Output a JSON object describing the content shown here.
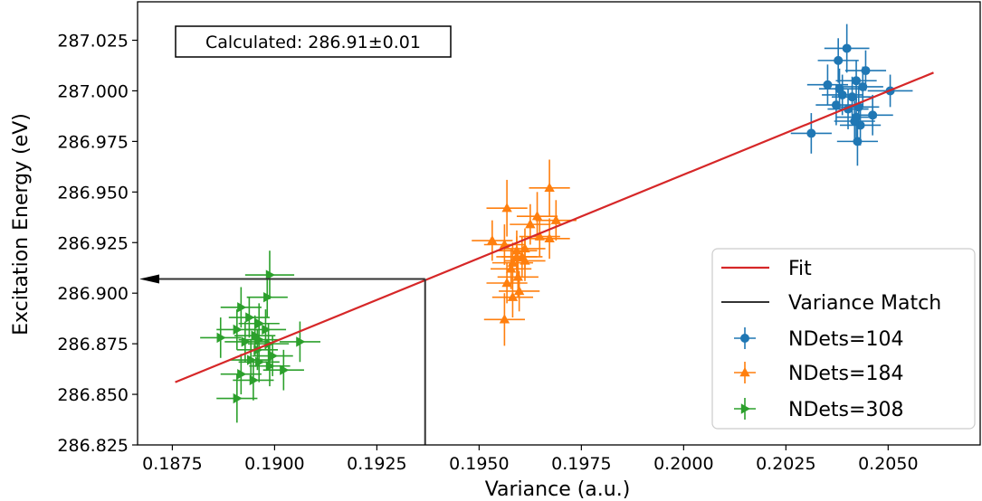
{
  "chart_data": {
    "type": "scatter",
    "xlabel": "Variance (a.u.)",
    "ylabel": "Excitation Energy (eV)",
    "xlim": [
      0.18665,
      0.20725
    ],
    "ylim": [
      286.825,
      287.044
    ],
    "x_ticks": [
      "0.1875",
      "0.1900",
      "0.1925",
      "0.1950",
      "0.1975",
      "0.2000",
      "0.2025",
      "0.2050"
    ],
    "y_ticks": [
      "286.825",
      "286.850",
      "286.875",
      "286.900",
      "286.925",
      "286.950",
      "286.975",
      "287.000",
      "287.025"
    ],
    "annotation": "Calculated: 286.91±0.01",
    "legend_position": "lower-right",
    "fit": {
      "name": "Fit",
      "color": "#d62728",
      "x": [
        0.18757,
        0.20611
      ],
      "y": [
        286.856,
        287.009
      ]
    },
    "variance_match": {
      "name": "Variance Match",
      "color": "#333333",
      "x": 0.19368,
      "y": 286.907
    },
    "series": [
      {
        "name": "NDets=104",
        "color": "#1f77b4",
        "marker": "circle",
        "points": [
          [
            0.20399,
            287.021,
            0.00055,
            0.012
          ],
          [
            0.20378,
            287.015,
            0.0005,
            0.011
          ],
          [
            0.20352,
            287.003,
            0.0005,
            0.01
          ],
          [
            0.20381,
            287.001,
            0.0005,
            0.01
          ],
          [
            0.20388,
            286.998,
            0.0005,
            0.01
          ],
          [
            0.20445,
            287.01,
            0.0005,
            0.01
          ],
          [
            0.20505,
            287.0,
            0.00055,
            0.008
          ],
          [
            0.20438,
            287.002,
            0.0005,
            0.01
          ],
          [
            0.20422,
            287.005,
            0.0005,
            0.01
          ],
          [
            0.20412,
            286.997,
            0.0005,
            0.01
          ],
          [
            0.20373,
            286.993,
            0.0005,
            0.01
          ],
          [
            0.20402,
            286.991,
            0.0005,
            0.01
          ],
          [
            0.20428,
            286.992,
            0.0005,
            0.01
          ],
          [
            0.20462,
            286.988,
            0.0005,
            0.01
          ],
          [
            0.20422,
            286.987,
            0.0005,
            0.01
          ],
          [
            0.20432,
            286.983,
            0.0005,
            0.01
          ],
          [
            0.20418,
            286.985,
            0.0005,
            0.01
          ],
          [
            0.20425,
            286.975,
            0.0005,
            0.012
          ],
          [
            0.20312,
            286.979,
            0.0005,
            0.01
          ]
        ]
      },
      {
        "name": "NDets=184",
        "color": "#ff7f0e",
        "marker": "triangle",
        "points": [
          [
            0.19672,
            286.952,
            0.0005,
            0.014
          ],
          [
            0.19568,
            286.942,
            0.0005,
            0.014
          ],
          [
            0.19642,
            286.938,
            0.0005,
            0.012
          ],
          [
            0.19625,
            286.934,
            0.0005,
            0.01
          ],
          [
            0.19688,
            286.936,
            0.0005,
            0.01
          ],
          [
            0.19532,
            286.926,
            0.0005,
            0.01
          ],
          [
            0.19562,
            286.924,
            0.0005,
            0.01
          ],
          [
            0.19592,
            286.921,
            0.0005,
            0.01
          ],
          [
            0.19605,
            286.918,
            0.0005,
            0.01
          ],
          [
            0.19612,
            286.922,
            0.0005,
            0.01
          ],
          [
            0.19648,
            286.928,
            0.0005,
            0.01
          ],
          [
            0.19672,
            286.927,
            0.0005,
            0.01
          ],
          [
            0.19582,
            286.915,
            0.0005,
            0.01
          ],
          [
            0.19568,
            286.905,
            0.0005,
            0.01
          ],
          [
            0.19578,
            286.912,
            0.0005,
            0.01
          ],
          [
            0.19595,
            286.908,
            0.0005,
            0.01
          ],
          [
            0.19598,
            286.901,
            0.0005,
            0.01
          ],
          [
            0.19582,
            286.898,
            0.0005,
            0.01
          ],
          [
            0.19592,
            286.918,
            0.0005,
            0.01
          ],
          [
            0.19612,
            286.916,
            0.0005,
            0.01
          ],
          [
            0.19562,
            286.887,
            0.0005,
            0.013
          ]
        ]
      },
      {
        "name": "NDets=308",
        "color": "#2ca02c",
        "marker": "triangle-right",
        "points": [
          [
            0.18988,
            286.909,
            0.0006,
            0.012
          ],
          [
            0.18918,
            286.893,
            0.0005,
            0.01
          ],
          [
            0.18982,
            286.898,
            0.0005,
            0.01
          ],
          [
            0.18938,
            286.888,
            0.0005,
            0.01
          ],
          [
            0.18962,
            286.885,
            0.0005,
            0.01
          ],
          [
            0.18978,
            286.882,
            0.0005,
            0.01
          ],
          [
            0.18908,
            286.882,
            0.0005,
            0.01
          ],
          [
            0.18952,
            286.879,
            0.0005,
            0.01
          ],
          [
            0.18928,
            286.876,
            0.0005,
            0.01
          ],
          [
            0.18868,
            286.878,
            0.0005,
            0.01
          ],
          [
            0.18962,
            286.877,
            0.0005,
            0.01
          ],
          [
            0.19062,
            286.876,
            0.0005,
            0.01
          ],
          [
            0.18985,
            286.875,
            0.0005,
            0.01
          ],
          [
            0.18958,
            286.872,
            0.0005,
            0.01
          ],
          [
            0.18995,
            286.869,
            0.0005,
            0.01
          ],
          [
            0.18962,
            286.866,
            0.0005,
            0.01
          ],
          [
            0.18942,
            286.867,
            0.0005,
            0.01
          ],
          [
            0.18988,
            286.864,
            0.0005,
            0.01
          ],
          [
            0.19022,
            286.862,
            0.0005,
            0.01
          ],
          [
            0.18918,
            286.86,
            0.0005,
            0.01
          ],
          [
            0.18948,
            286.857,
            0.0005,
            0.01
          ],
          [
            0.18908,
            286.848,
            0.0005,
            0.012
          ]
        ]
      }
    ]
  }
}
